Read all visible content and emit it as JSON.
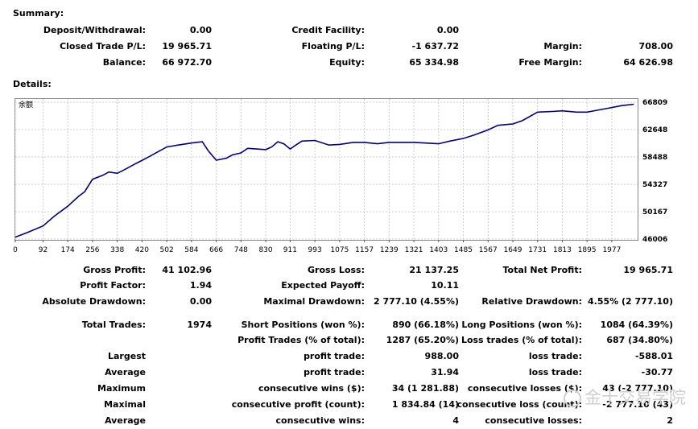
{
  "summary": {
    "title": "Summary:",
    "rows": [
      [
        {
          "label": "Deposit/Withdrawal:",
          "value": "0.00"
        },
        {
          "label": "Credit Facility:",
          "value": "0.00"
        },
        {
          "label": "",
          "value": ""
        }
      ],
      [
        {
          "label": "Closed Trade P/L:",
          "value": "19 965.71"
        },
        {
          "label": "Floating P/L:",
          "value": "-1 637.72"
        },
        {
          "label": "Margin:",
          "value": "708.00"
        }
      ],
      [
        {
          "label": "Balance:",
          "value": "66 972.70"
        },
        {
          "label": "Equity:",
          "value": "65 334.98"
        },
        {
          "label": "Free Margin:",
          "value": "64 626.98"
        }
      ]
    ]
  },
  "details": {
    "title": "Details:"
  },
  "chart_data": {
    "type": "line",
    "title": "余额",
    "x_ticks": [
      "0",
      "92",
      "174",
      "256",
      "338",
      "420",
      "502",
      "584",
      "666",
      "748",
      "830",
      "911",
      "993",
      "1075",
      "1157",
      "1239",
      "1321",
      "1403",
      "1485",
      "1567",
      "1649",
      "1731",
      "1813",
      "1895",
      "1977"
    ],
    "y_ticks": [
      "66809",
      "62648",
      "58488",
      "54327",
      "50167",
      "46006"
    ],
    "xlim": [
      0,
      2060
    ],
    "ylim": [
      46006,
      66809
    ],
    "grid": true,
    "series": [
      {
        "color": "#000080",
        "x": [
          0,
          40,
          92,
          130,
          174,
          210,
          230,
          256,
          290,
          310,
          338,
          360,
          400,
          430,
          470,
          502,
          540,
          584,
          620,
          640,
          666,
          700,
          720,
          748,
          770,
          800,
          830,
          850,
          870,
          890,
          911,
          930,
          950,
          993,
          1040,
          1075,
          1120,
          1157,
          1200,
          1239,
          1280,
          1321,
          1360,
          1403,
          1440,
          1485,
          1520,
          1567,
          1600,
          1649,
          1680,
          1731,
          1780,
          1813,
          1860,
          1895,
          1930,
          1977,
          2010,
          2050
        ],
        "y": [
          46300,
          47000,
          48000,
          49500,
          51000,
          52500,
          53200,
          55100,
          55700,
          56200,
          56000,
          56500,
          57500,
          58200,
          59200,
          60000,
          60300,
          60600,
          60800,
          59400,
          58000,
          58300,
          58800,
          59100,
          59800,
          59700,
          59600,
          60000,
          60800,
          60500,
          59700,
          60300,
          60900,
          61000,
          60300,
          60400,
          60700,
          60700,
          60500,
          60700,
          60700,
          60700,
          60600,
          60500,
          60900,
          61300,
          61800,
          62600,
          63300,
          63500,
          64000,
          65300,
          65400,
          65500,
          65300,
          65300,
          65600,
          66000,
          66300,
          66500
        ]
      }
    ]
  },
  "stats": {
    "block1": [
      [
        {
          "label": "Gross Profit:",
          "value": "41 102.96"
        },
        {
          "label": "Gross Loss:",
          "value": "21 137.25"
        },
        {
          "label": "Total Net Profit:",
          "value": "19 965.71"
        }
      ],
      [
        {
          "label": "Profit Factor:",
          "value": "1.94"
        },
        {
          "label": "Expected Payoff:",
          "value": "10.11"
        },
        {
          "label": "",
          "value": ""
        }
      ],
      [
        {
          "label": "Absolute Drawdown:",
          "value": "0.00"
        },
        {
          "label": "Maximal Drawdown:",
          "value": "2 777.10 (4.55%)"
        },
        {
          "label": "Relative Drawdown:",
          "value": "4.55% (2 777.10)"
        }
      ]
    ],
    "block2": [
      [
        {
          "label": "Total Trades:",
          "value": "1974"
        },
        {
          "label": "Short Positions (won %):",
          "value": "890 (66.18%)"
        },
        {
          "label": "Long Positions (won %):",
          "value": "1084 (64.39%)"
        }
      ],
      [
        {
          "label": "",
          "value": ""
        },
        {
          "label": "Profit Trades (% of total):",
          "value": "1287 (65.20%)"
        },
        {
          "label": "Loss trades (% of total):",
          "value": "687 (34.80%)"
        }
      ],
      [
        {
          "label": "Largest",
          "value": ""
        },
        {
          "label": "profit trade:",
          "value": "988.00"
        },
        {
          "label": "loss trade:",
          "value": "-588.01"
        }
      ],
      [
        {
          "label": "Average",
          "value": ""
        },
        {
          "label": "profit trade:",
          "value": "31.94"
        },
        {
          "label": "loss trade:",
          "value": "-30.77"
        }
      ],
      [
        {
          "label": "Maximum",
          "value": ""
        },
        {
          "label": "consecutive wins ($):",
          "value": "34 (1 281.88)"
        },
        {
          "label": "consecutive losses ($):",
          "value": "43 (-2 777.10)"
        }
      ],
      [
        {
          "label": "Maximal",
          "value": ""
        },
        {
          "label": "consecutive profit (count):",
          "value": "1 834.84 (14)"
        },
        {
          "label": "consecutive loss (count):",
          "value": "-2 777.10 (43)"
        }
      ],
      [
        {
          "label": "Average",
          "value": ""
        },
        {
          "label": "consecutive wins:",
          "value": "4"
        },
        {
          "label": "consecutive losses:",
          "value": "2"
        }
      ]
    ]
  },
  "watermark": {
    "text": "金十交易学院",
    "icon": "wechat-icon"
  }
}
